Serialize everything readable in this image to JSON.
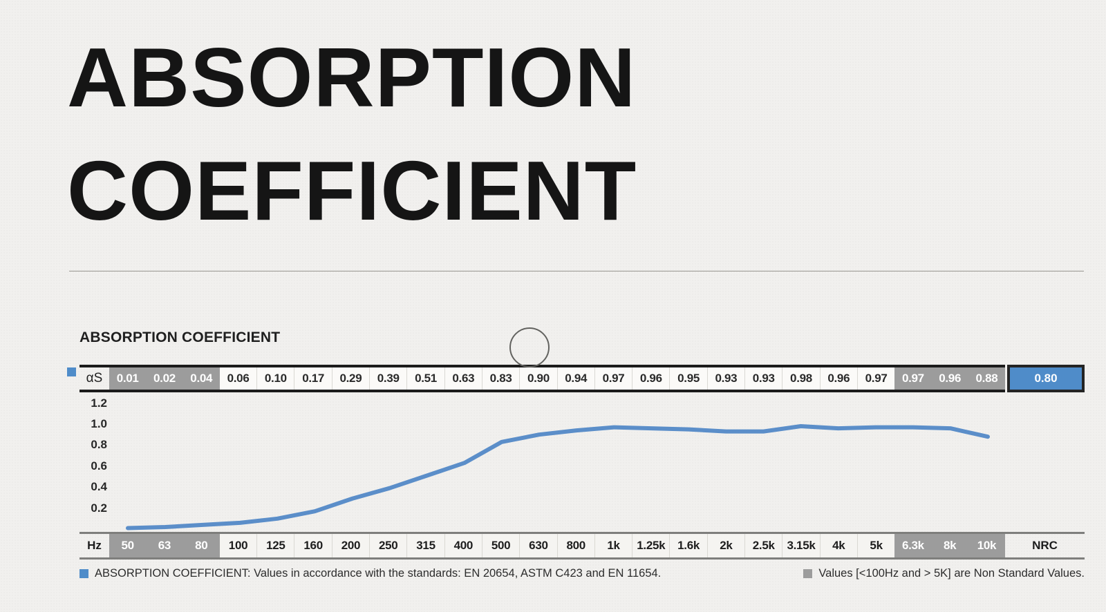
{
  "page": {
    "title_line1": "ABSORPTION",
    "title_line2": "COEFFICIENT"
  },
  "section": {
    "heading": "ABSORPTION COEFFICIENT"
  },
  "table": {
    "value_row_label": "αS",
    "freq_row_label": "Hz",
    "nrc_label": "NRC",
    "nrc_value": "0.80"
  },
  "chart_data": {
    "type": "line",
    "title": "ABSORPTION COEFFICIENT",
    "x_unit": "Hz",
    "categories": [
      "50",
      "63",
      "80",
      "100",
      "125",
      "160",
      "200",
      "250",
      "315",
      "400",
      "500",
      "630",
      "800",
      "1k",
      "1.25k",
      "1.6k",
      "2k",
      "2.5k",
      "3.15k",
      "4k",
      "5k",
      "6.3k",
      "8k",
      "10k"
    ],
    "values": [
      0.01,
      0.02,
      0.04,
      0.06,
      0.1,
      0.17,
      0.29,
      0.39,
      0.51,
      0.63,
      0.83,
      0.9,
      0.94,
      0.97,
      0.96,
      0.95,
      0.93,
      0.93,
      0.98,
      0.96,
      0.97,
      0.97,
      0.96,
      0.88
    ],
    "values_display": [
      "0.01",
      "0.02",
      "0.04",
      "0.06",
      "0.10",
      "0.17",
      "0.29",
      "0.39",
      "0.51",
      "0.63",
      "0.83",
      "0.90",
      "0.94",
      "0.97",
      "0.96",
      "0.95",
      "0.93",
      "0.93",
      "0.98",
      "0.96",
      "0.97",
      "0.97",
      "0.96",
      "0.88"
    ],
    "non_standard_categories": [
      "50",
      "63",
      "80",
      "6.3k",
      "8k",
      "10k"
    ],
    "nrc": 0.8,
    "y_ticks": [
      "1.2",
      "1.0",
      "0.8",
      "0.6",
      "0.4",
      "0.2"
    ],
    "ylim": [
      0,
      1.3
    ],
    "grid": false,
    "legend_position": "bottom",
    "line_color": "#5b8ec9"
  },
  "legend": {
    "standard_note": "ABSORPTION COEFFICIENT: Values in accordance with the standards: EN 20654, ASTM C423 and EN 11654.",
    "non_standard_note": "Values [<100Hz and > 5K] are Non Standard Values."
  },
  "colors": {
    "accent_blue": "#4f8cc9",
    "line_blue": "#5b8ec9",
    "non_standard_gray": "#9c9c9c",
    "border_black": "#1b1b1b"
  }
}
